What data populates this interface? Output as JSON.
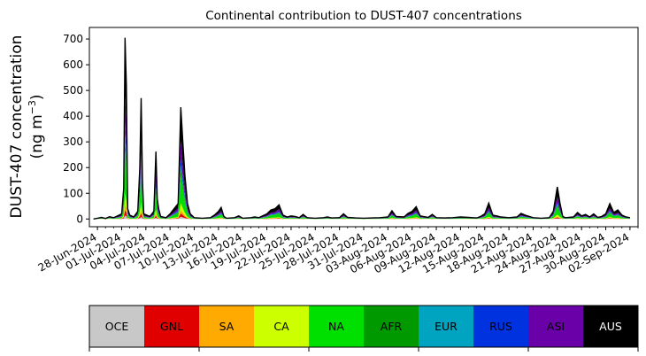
{
  "chart_data": {
    "type": "area",
    "stacked": true,
    "title": "Continental contribution to DUST-407 concentrations",
    "ylabel_line1": "DUST-407 concentration",
    "ylabel_line2_prefix": "(ng m",
    "ylabel_line2_sup": "−3",
    "ylabel_line2_suffix": ")",
    "xlabel": "",
    "ylim": [
      -30,
      745
    ],
    "xlim": [
      "2024-06-27",
      "2024-09-03"
    ],
    "yticks": [
      0,
      100,
      200,
      300,
      400,
      500,
      600,
      700
    ],
    "xticks": [
      "2024-06-28",
      "2024-07-01",
      "2024-07-04",
      "2024-07-07",
      "2024-07-10",
      "2024-07-13",
      "2024-07-16",
      "2024-07-19",
      "2024-07-22",
      "2024-07-25",
      "2024-07-28",
      "2024-07-31",
      "2024-08-03",
      "2024-08-06",
      "2024-08-09",
      "2024-08-12",
      "2024-08-15",
      "2024-08-18",
      "2024-08-21",
      "2024-08-24",
      "2024-08-27",
      "2024-08-30",
      "2024-09-02"
    ],
    "xtick_labels": [
      "28-Jun-2024",
      "01-Jul-2024",
      "04-Jul-2024",
      "07-Jul-2024",
      "10-Jul-2024",
      "13-Jul-2024",
      "16-Jul-2024",
      "19-Jul-2024",
      "22-Jul-2024",
      "25-Jul-2024",
      "28-Jul-2024",
      "31-Jul-2024",
      "03-Aug-2024",
      "06-Aug-2024",
      "09-Aug-2024",
      "12-Aug-2024",
      "15-Aug-2024",
      "18-Aug-2024",
      "21-Aug-2024",
      "24-Aug-2024",
      "27-Aug-2024",
      "30-Aug-2024",
      "02-Sep-2024"
    ],
    "grid": false,
    "legend_placement": "bottom colorbar",
    "series": [
      {
        "name": "OCE",
        "color": "#c8c8c8"
      },
      {
        "name": "GNL",
        "color": "#e00000"
      },
      {
        "name": "SA",
        "color": "#ffaa00"
      },
      {
        "name": "CA",
        "color": "#ccff00"
      },
      {
        "name": "NA",
        "color": "#00e000"
      },
      {
        "name": "AFR",
        "color": "#009900"
      },
      {
        "name": "EUR",
        "color": "#00a4c0"
      },
      {
        "name": "RUS",
        "color": "#0032e0"
      },
      {
        "name": "ASI",
        "color": "#6a00a8"
      },
      {
        "name": "AUS",
        "color": "#000000"
      }
    ],
    "legend_text_colors": [
      "#000000",
      "#000000",
      "#000000",
      "#000000",
      "#000000",
      "#000000",
      "#000000",
      "#000000",
      "#000000",
      "#ffffff"
    ],
    "total": [
      [
        "2024-06-27 12:00",
        0
      ],
      [
        "2024-06-28 00:00",
        3
      ],
      [
        "2024-06-28 12:00",
        6
      ],
      [
        "2024-06-29 00:00",
        2
      ],
      [
        "2024-06-29 12:00",
        9
      ],
      [
        "2024-06-30 00:00",
        5
      ],
      [
        "2024-06-30 12:00",
        12
      ],
      [
        "2024-07-01 00:00",
        20
      ],
      [
        "2024-07-01 06:00",
        120
      ],
      [
        "2024-07-01 10:00",
        705
      ],
      [
        "2024-07-01 14:00",
        520
      ],
      [
        "2024-07-01 18:00",
        40
      ],
      [
        "2024-07-02 00:00",
        15
      ],
      [
        "2024-07-02 12:00",
        8
      ],
      [
        "2024-07-03 00:00",
        30
      ],
      [
        "2024-07-03 06:00",
        200
      ],
      [
        "2024-07-03 10:00",
        470
      ],
      [
        "2024-07-03 14:00",
        150
      ],
      [
        "2024-07-03 18:00",
        20
      ],
      [
        "2024-07-04 12:00",
        10
      ],
      [
        "2024-07-05 00:00",
        30
      ],
      [
        "2024-07-05 06:00",
        262
      ],
      [
        "2024-07-05 10:00",
        80
      ],
      [
        "2024-07-05 14:00",
        40
      ],
      [
        "2024-07-05 20:00",
        10
      ],
      [
        "2024-07-06 12:00",
        5
      ],
      [
        "2024-07-07 00:00",
        20
      ],
      [
        "2024-07-07 12:00",
        40
      ],
      [
        "2024-07-08 00:00",
        60
      ],
      [
        "2024-07-08 08:00",
        435
      ],
      [
        "2024-07-08 14:00",
        300
      ],
      [
        "2024-07-08 20:00",
        172
      ],
      [
        "2024-07-09 04:00",
        60
      ],
      [
        "2024-07-09 12:00",
        20
      ],
      [
        "2024-07-10 00:00",
        5
      ],
      [
        "2024-07-11 00:00",
        3
      ],
      [
        "2024-07-12 00:00",
        5
      ],
      [
        "2024-07-12 12:00",
        15
      ],
      [
        "2024-07-13 00:00",
        30
      ],
      [
        "2024-07-13 08:00",
        45
      ],
      [
        "2024-07-13 16:00",
        10
      ],
      [
        "2024-07-14 00:00",
        3
      ],
      [
        "2024-07-15 00:00",
        5
      ],
      [
        "2024-07-15 12:00",
        12
      ],
      [
        "2024-07-16 00:00",
        3
      ],
      [
        "2024-07-17 00:00",
        5
      ],
      [
        "2024-07-17 12:00",
        8
      ],
      [
        "2024-07-18 00:00",
        5
      ],
      [
        "2024-07-19 00:00",
        20
      ],
      [
        "2024-07-19 12:00",
        35
      ],
      [
        "2024-07-20 00:00",
        40
      ],
      [
        "2024-07-20 12:00",
        55
      ],
      [
        "2024-07-21 00:00",
        15
      ],
      [
        "2024-07-21 12:00",
        8
      ],
      [
        "2024-07-22 00:00",
        12
      ],
      [
        "2024-07-22 12:00",
        10
      ],
      [
        "2024-07-23 00:00",
        5
      ],
      [
        "2024-07-23 12:00",
        18
      ],
      [
        "2024-07-24 00:00",
        5
      ],
      [
        "2024-07-25 00:00",
        3
      ],
      [
        "2024-07-26 00:00",
        5
      ],
      [
        "2024-07-26 12:00",
        8
      ],
      [
        "2024-07-27 00:00",
        4
      ],
      [
        "2024-07-28 00:00",
        5
      ],
      [
        "2024-07-28 12:00",
        20
      ],
      [
        "2024-07-29 00:00",
        6
      ],
      [
        "2024-07-30 00:00",
        4
      ],
      [
        "2024-07-31 00:00",
        3
      ],
      [
        "2024-08-01 00:00",
        4
      ],
      [
        "2024-08-02 00:00",
        5
      ],
      [
        "2024-08-03 00:00",
        8
      ],
      [
        "2024-08-03 12:00",
        32
      ],
      [
        "2024-08-04 00:00",
        10
      ],
      [
        "2024-08-05 00:00",
        8
      ],
      [
        "2024-08-05 12:00",
        22
      ],
      [
        "2024-08-06 00:00",
        30
      ],
      [
        "2024-08-06 12:00",
        48
      ],
      [
        "2024-08-07 00:00",
        12
      ],
      [
        "2024-08-08 00:00",
        6
      ],
      [
        "2024-08-08 12:00",
        18
      ],
      [
        "2024-08-09 00:00",
        5
      ],
      [
        "2024-08-10 00:00",
        4
      ],
      [
        "2024-08-11 00:00",
        5
      ],
      [
        "2024-08-12 00:00",
        8
      ],
      [
        "2024-08-13 00:00",
        6
      ],
      [
        "2024-08-14 00:00",
        4
      ],
      [
        "2024-08-14 12:00",
        10
      ],
      [
        "2024-08-15 00:00",
        20
      ],
      [
        "2024-08-15 12:00",
        62
      ],
      [
        "2024-08-16 00:00",
        15
      ],
      [
        "2024-08-16 12:00",
        12
      ],
      [
        "2024-08-17 00:00",
        8
      ],
      [
        "2024-08-18 00:00",
        5
      ],
      [
        "2024-08-19 00:00",
        8
      ],
      [
        "2024-08-19 12:00",
        22
      ],
      [
        "2024-08-20 00:00",
        15
      ],
      [
        "2024-08-21 00:00",
        5
      ],
      [
        "2024-08-22 00:00",
        3
      ],
      [
        "2024-08-23 00:00",
        5
      ],
      [
        "2024-08-23 12:00",
        30
      ],
      [
        "2024-08-24 00:00",
        125
      ],
      [
        "2024-08-24 08:00",
        60
      ],
      [
        "2024-08-24 16:00",
        10
      ],
      [
        "2024-08-25 00:00",
        5
      ],
      [
        "2024-08-26 00:00",
        8
      ],
      [
        "2024-08-26 12:00",
        25
      ],
      [
        "2024-08-27 00:00",
        12
      ],
      [
        "2024-08-27 12:00",
        18
      ],
      [
        "2024-08-28 00:00",
        8
      ],
      [
        "2024-08-28 12:00",
        20
      ],
      [
        "2024-08-29 00:00",
        6
      ],
      [
        "2024-08-29 12:00",
        10
      ],
      [
        "2024-08-30 00:00",
        20
      ],
      [
        "2024-08-30 12:00",
        60
      ],
      [
        "2024-08-31 00:00",
        25
      ],
      [
        "2024-08-31 12:00",
        35
      ],
      [
        "2024-09-01 00:00",
        15
      ],
      [
        "2024-09-01 12:00",
        8
      ],
      [
        "2024-09-02 00:00",
        5
      ]
    ]
  }
}
